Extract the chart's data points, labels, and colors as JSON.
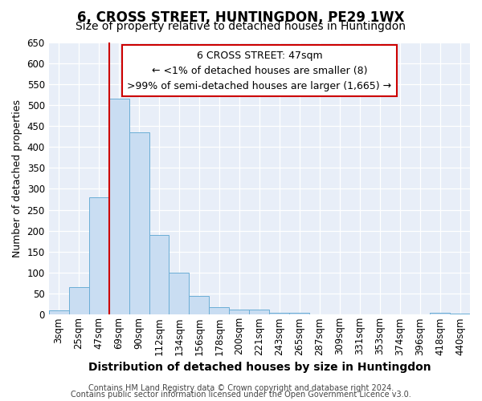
{
  "title": "6, CROSS STREET, HUNTINGDON, PE29 1WX",
  "subtitle": "Size of property relative to detached houses in Huntingdon",
  "xlabel": "Distribution of detached houses by size in Huntingdon",
  "ylabel": "Number of detached properties",
  "categories": [
    "3sqm",
    "25sqm",
    "47sqm",
    "69sqm",
    "90sqm",
    "112sqm",
    "134sqm",
    "156sqm",
    "178sqm",
    "200sqm",
    "221sqm",
    "243sqm",
    "265sqm",
    "287sqm",
    "309sqm",
    "331sqm",
    "353sqm",
    "374sqm",
    "396sqm",
    "418sqm",
    "440sqm"
  ],
  "values": [
    10,
    65,
    280,
    515,
    435,
    190,
    100,
    45,
    18,
    12,
    12,
    5,
    5,
    0,
    0,
    0,
    0,
    0,
    0,
    5,
    3
  ],
  "bar_color": "#c9ddf2",
  "bar_edge_color": "#6baed6",
  "highlight_color": "#cc0000",
  "highlight_bar_index": 2,
  "annotation_title": "6 CROSS STREET: 47sqm",
  "annotation_line1": "← <1% of detached houses are smaller (8)",
  "annotation_line2": ">99% of semi-detached houses are larger (1,665) →",
  "annotation_box_facecolor": "#ffffff",
  "annotation_box_edgecolor": "#cc0000",
  "ylim": [
    0,
    650
  ],
  "footer1": "Contains HM Land Registry data © Crown copyright and database right 2024.",
  "footer2": "Contains public sector information licensed under the Open Government Licence v3.0.",
  "bg_color": "#ffffff",
  "plot_bg_color": "#e8eef8",
  "grid_color": "#ffffff",
  "title_fontsize": 12,
  "subtitle_fontsize": 10,
  "ylabel_fontsize": 9,
  "xlabel_fontsize": 10,
  "tick_fontsize": 8.5,
  "annotation_fontsize": 9,
  "footer_fontsize": 7
}
